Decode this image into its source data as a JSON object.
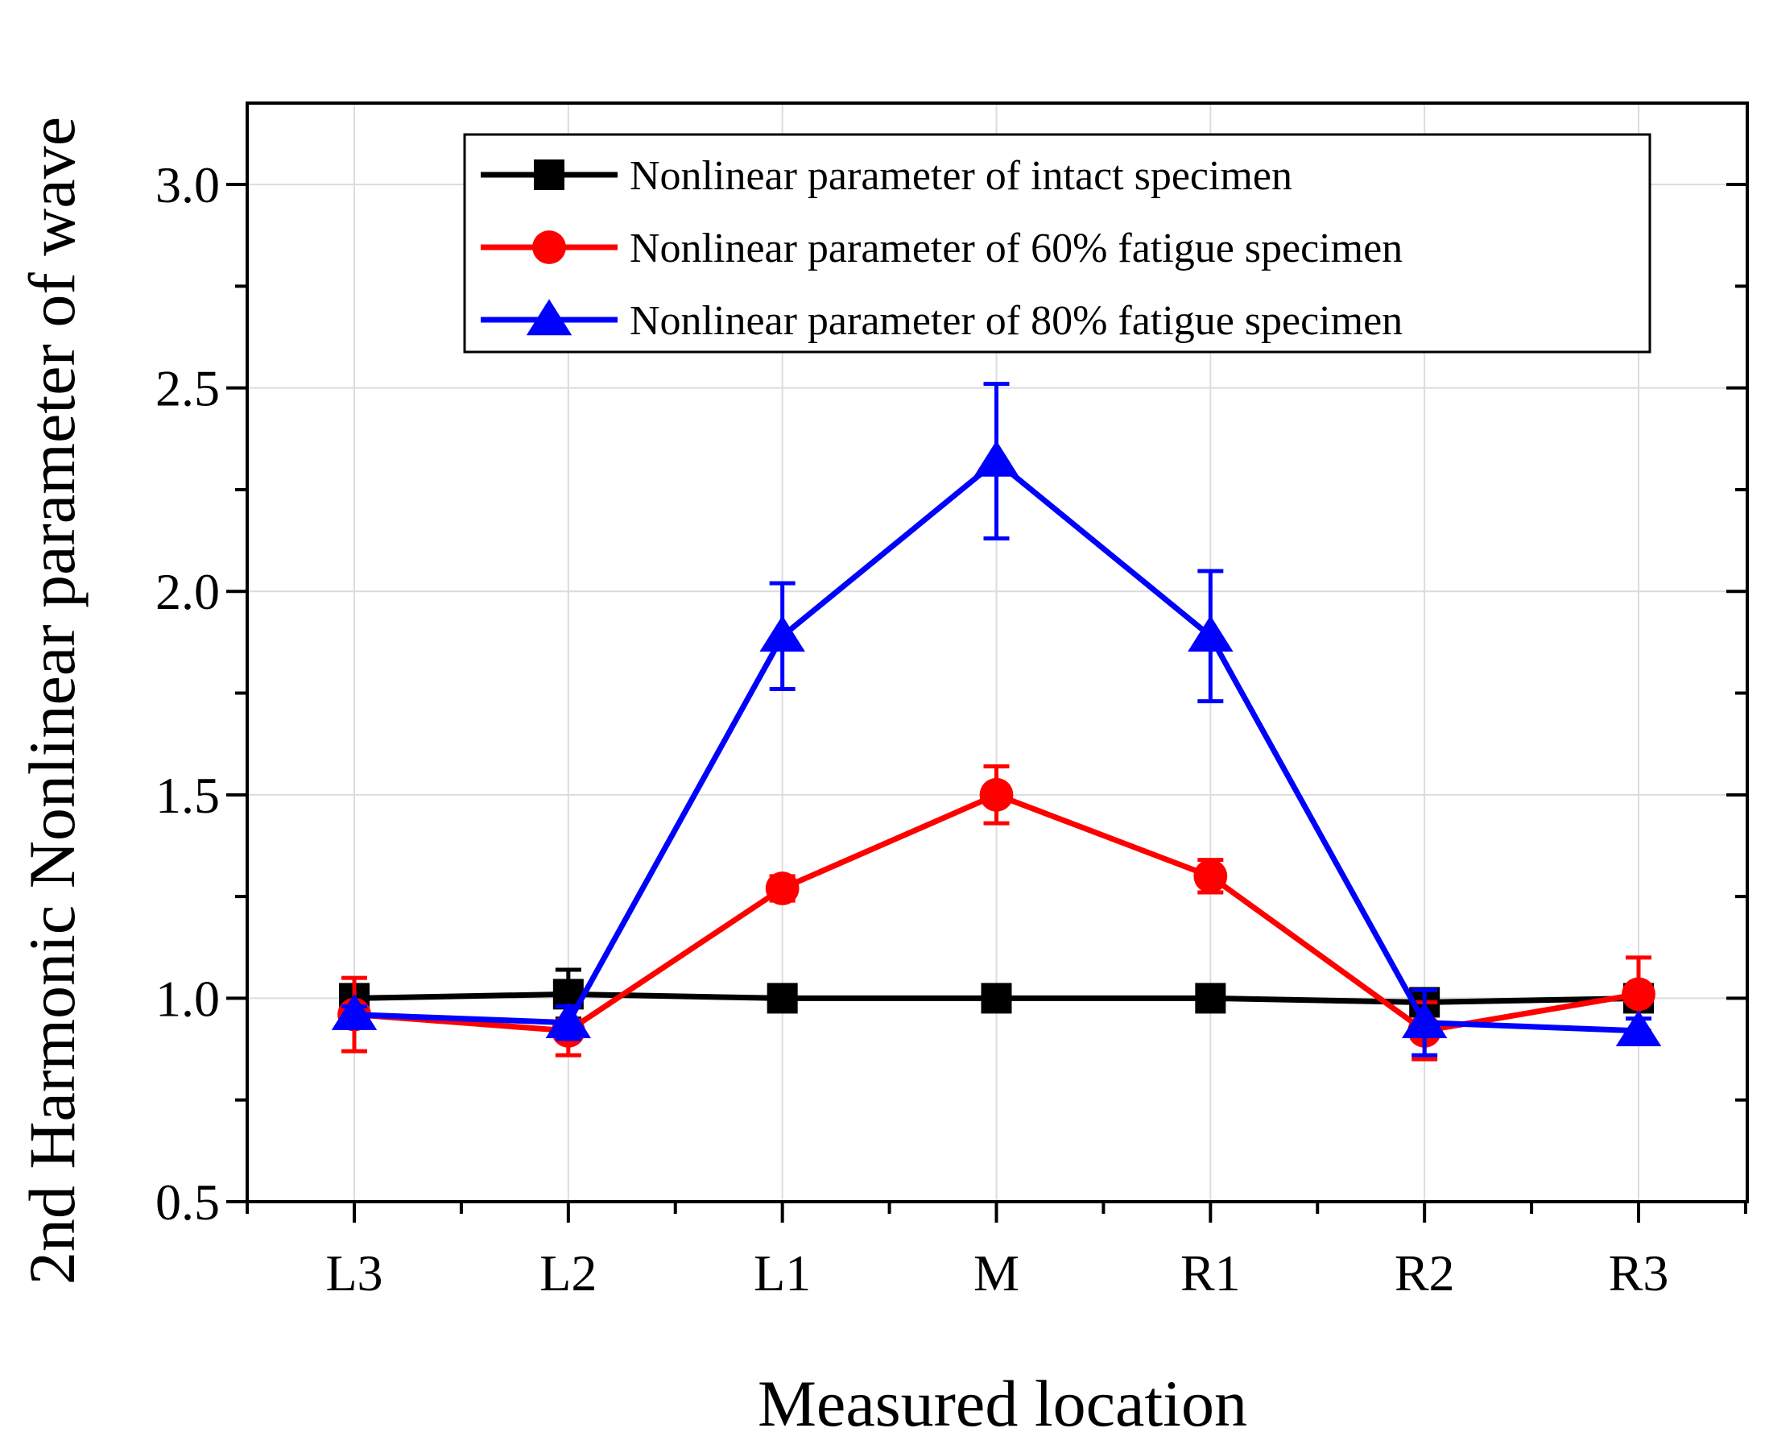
{
  "chart_data": {
    "type": "line",
    "title": "",
    "xlabel": "Measured location",
    "ylabel": "2nd Harmonic Nonlinear parameter of wave",
    "categories": [
      "L3",
      "L2",
      "L1",
      "M",
      "R1",
      "R2",
      "R3"
    ],
    "ylim": [
      0.5,
      3.2
    ],
    "yticks": [
      0.5,
      1.0,
      1.5,
      2.0,
      2.5,
      3.0
    ],
    "ytick_labels": [
      "0.5",
      "1.0",
      "1.5",
      "2.0",
      "2.5",
      "3.0"
    ],
    "grid": true,
    "legend_position": "top-right",
    "series": [
      {
        "name": "Nonlinear parameter of intact specimen",
        "color": "#000000",
        "marker": "square",
        "values": [
          1.0,
          1.01,
          1.0,
          1.0,
          1.0,
          0.99,
          1.0
        ],
        "errors": [
          0.03,
          0.06,
          0.0,
          0.0,
          0.0,
          0.03,
          0.0
        ]
      },
      {
        "name": "Nonlinear parameter of 60% fatigue specimen",
        "color": "#ff0000",
        "marker": "circle",
        "values": [
          0.96,
          0.92,
          1.27,
          1.5,
          1.3,
          0.92,
          1.01
        ],
        "errors": [
          0.09,
          0.06,
          0.03,
          0.07,
          0.04,
          0.07,
          0.09
        ]
      },
      {
        "name": "Nonlinear parameter of 80% fatigue specimen",
        "color": "#0000ff",
        "marker": "triangle",
        "values": [
          0.96,
          0.94,
          1.89,
          2.32,
          1.89,
          0.94,
          0.92
        ],
        "errors": [
          0.02,
          0.04,
          0.13,
          0.19,
          0.16,
          0.08,
          0.03
        ]
      }
    ]
  }
}
